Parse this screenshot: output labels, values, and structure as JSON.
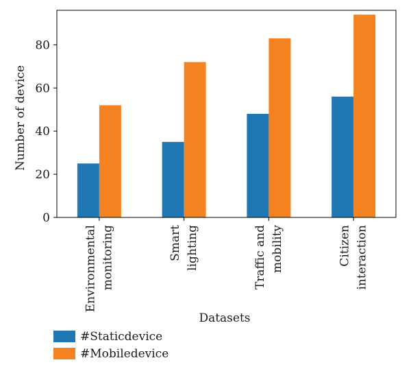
{
  "chart_data": {
    "type": "bar",
    "xlabel": "Datasets",
    "ylabel": "Number of device",
    "ylim": [
      0,
      96
    ],
    "yticks": [
      0,
      20,
      40,
      60,
      80
    ],
    "grid": false,
    "legend_position": "bottom-left",
    "categories": [
      [
        "Environmental",
        "monitoring"
      ],
      [
        "Smart",
        "lighting"
      ],
      [
        "Traffic and",
        "mobility"
      ],
      [
        "Citizen",
        "interaction"
      ]
    ],
    "series": [
      {
        "name": "#Staticdevice",
        "color": "#1f77b4",
        "values": [
          25,
          35,
          48,
          56
        ]
      },
      {
        "name": "#Mobiledevice",
        "color": "#f58220",
        "values": [
          52,
          72,
          83,
          94
        ]
      }
    ]
  }
}
